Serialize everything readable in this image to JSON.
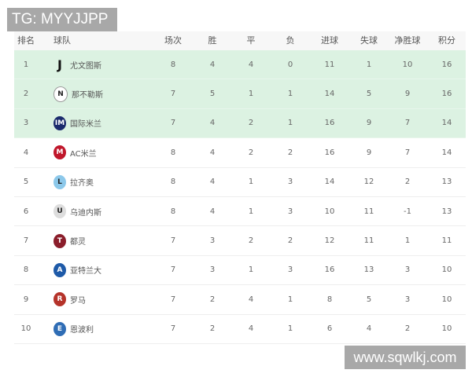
{
  "watermarks": {
    "top": "TG: MYYJJPP",
    "bottom": "www.sqwlkj.com"
  },
  "columns": [
    "排名",
    "球队",
    "场次",
    "胜",
    "平",
    "负",
    "进球",
    "失球",
    "净胜球",
    "积分"
  ],
  "highlight_color": "#dcf2e2",
  "rows": [
    {
      "rank": "1",
      "team": "尤文图斯",
      "logo": "juventus",
      "color": "#111111",
      "glyph": "J",
      "played": "8",
      "won": "4",
      "drawn": "4",
      "lost": "0",
      "gf": "11",
      "ga": "1",
      "gd": "10",
      "pts": "16",
      "highlight": true
    },
    {
      "rank": "2",
      "team": "那不勒斯",
      "logo": "napoli",
      "color": "#ffffff",
      "glyph": "N",
      "played": "7",
      "won": "5",
      "drawn": "1",
      "lost": "1",
      "gf": "14",
      "ga": "5",
      "gd": "9",
      "pts": "16",
      "highlight": true
    },
    {
      "rank": "3",
      "team": "国际米兰",
      "logo": "inter",
      "color": "#1a2a6c",
      "glyph": "IM",
      "played": "7",
      "won": "4",
      "drawn": "2",
      "lost": "1",
      "gf": "16",
      "ga": "9",
      "gd": "7",
      "pts": "14",
      "highlight": true
    },
    {
      "rank": "4",
      "team": "AC米兰",
      "logo": "ac-milan",
      "color": "#c0172b",
      "glyph": "M",
      "played": "8",
      "won": "4",
      "drawn": "2",
      "lost": "2",
      "gf": "16",
      "ga": "9",
      "gd": "7",
      "pts": "14",
      "highlight": false
    },
    {
      "rank": "5",
      "team": "拉齐奥",
      "logo": "lazio",
      "color": "#8cc8ea",
      "glyph": "L",
      "played": "8",
      "won": "4",
      "drawn": "1",
      "lost": "3",
      "gf": "14",
      "ga": "12",
      "gd": "2",
      "pts": "13",
      "highlight": false
    },
    {
      "rank": "6",
      "team": "乌迪内斯",
      "logo": "udinese",
      "color": "#dddddd",
      "glyph": "U",
      "played": "8",
      "won": "4",
      "drawn": "1",
      "lost": "3",
      "gf": "10",
      "ga": "11",
      "gd": "-1",
      "pts": "13",
      "highlight": false
    },
    {
      "rank": "7",
      "team": "都灵",
      "logo": "torino",
      "color": "#8b1e2b",
      "glyph": "T",
      "played": "7",
      "won": "3",
      "drawn": "2",
      "lost": "2",
      "gf": "12",
      "ga": "11",
      "gd": "1",
      "pts": "11",
      "highlight": false
    },
    {
      "rank": "8",
      "team": "亚特兰大",
      "logo": "atalanta",
      "color": "#1e5aa8",
      "glyph": "A",
      "played": "7",
      "won": "3",
      "drawn": "1",
      "lost": "3",
      "gf": "16",
      "ga": "13",
      "gd": "3",
      "pts": "10",
      "highlight": false
    },
    {
      "rank": "9",
      "team": "罗马",
      "logo": "roma",
      "color": "#b5332a",
      "glyph": "R",
      "played": "7",
      "won": "2",
      "drawn": "4",
      "lost": "1",
      "gf": "8",
      "ga": "5",
      "gd": "3",
      "pts": "10",
      "highlight": false
    },
    {
      "rank": "10",
      "team": "恩波利",
      "logo": "empoli",
      "color": "#2f6db5",
      "glyph": "E",
      "played": "7",
      "won": "2",
      "drawn": "4",
      "lost": "1",
      "gf": "6",
      "ga": "4",
      "gd": "2",
      "pts": "10",
      "highlight": false
    }
  ]
}
